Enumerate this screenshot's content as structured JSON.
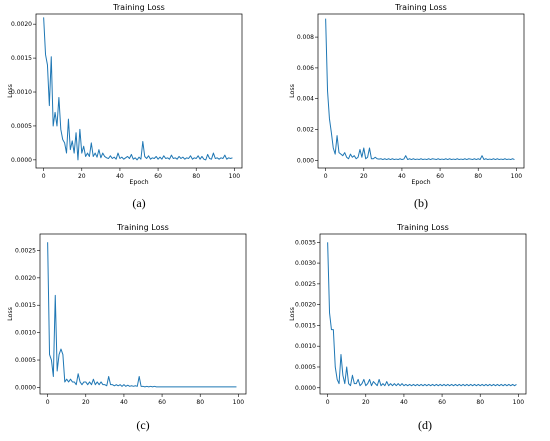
{
  "chart_data": [
    {
      "type": "line",
      "title": "Training Loss",
      "xlabel": "Epoch",
      "ylabel": "Loss",
      "caption": "(a)",
      "xlim": [
        -4,
        104
      ],
      "ylim": [
        -0.00012,
        0.00215
      ],
      "xticks": [
        0,
        20,
        40,
        60,
        80,
        100
      ],
      "xtick_labels": [
        "0",
        "20",
        "40",
        "60",
        "80",
        "100"
      ],
      "yticks": [
        0.0,
        0.0005,
        0.001,
        0.0015,
        0.002
      ],
      "ytick_labels": [
        "0.0000",
        "0.0005",
        "0.0010",
        "0.0015",
        "0.0020"
      ],
      "series": [
        {
          "color": "#1f77b4",
          "x": [
            0,
            1,
            2,
            3,
            4,
            5,
            6,
            7,
            8,
            9,
            10,
            11,
            12,
            13,
            14,
            15,
            16,
            17,
            18,
            19,
            20,
            21,
            22,
            23,
            24,
            25,
            26,
            27,
            28,
            29,
            30,
            31,
            32,
            33,
            34,
            35,
            36,
            37,
            38,
            39,
            40,
            41,
            42,
            43,
            44,
            45,
            46,
            47,
            48,
            49,
            50,
            51,
            52,
            53,
            54,
            55,
            56,
            57,
            58,
            59,
            60,
            61,
            62,
            63,
            64,
            65,
            66,
            67,
            68,
            69,
            70,
            71,
            72,
            73,
            74,
            75,
            76,
            77,
            78,
            79,
            80,
            81,
            82,
            83,
            84,
            85,
            86,
            87,
            88,
            89,
            90,
            91,
            92,
            93,
            94,
            95,
            96,
            97,
            98,
            99
          ],
          "values": [
            0.0021,
            0.00155,
            0.0014,
            0.0008,
            0.00152,
            0.0005,
            0.0007,
            0.0005,
            0.00092,
            0.00045,
            0.0003,
            0.00025,
            0.0001,
            0.0006,
            0.00015,
            0.00028,
            0.0001,
            0.0004,
            0.0,
            0.00045,
            0.0001,
            0.0002,
            5e-05,
            0.0001,
            5e-05,
            0.00025,
            5e-05,
            0.0001,
            4e-05,
            0.00015,
            3e-05,
            0.0001,
            5e-05,
            3e-05,
            2e-05,
            6e-05,
            2e-05,
            4e-05,
            1e-05,
            0.0001,
            2e-05,
            4e-05,
            1e-05,
            3e-05,
            5e-05,
            2e-05,
            8e-05,
            1e-05,
            3e-05,
            0.0,
            4e-05,
            1e-05,
            0.00027,
            5e-05,
            2e-05,
            6e-05,
            1e-05,
            3e-05,
            2e-05,
            5e-05,
            1e-05,
            4e-05,
            1e-05,
            6e-05,
            2e-05,
            3e-05,
            1e-05,
            7e-05,
            2e-05,
            3e-05,
            1e-05,
            5e-05,
            2e-05,
            4e-05,
            1e-05,
            3e-05,
            2e-05,
            6e-05,
            1e-05,
            3e-05,
            2e-05,
            6e-05,
            1e-05,
            5e-05,
            1e-05,
            0.0,
            8e-05,
            2e-05,
            1e-05,
            0.0001,
            2e-05,
            3e-05,
            1e-05,
            3e-05,
            2e-05,
            7e-05,
            1e-05,
            3e-05,
            2e-05,
            3e-05
          ]
        }
      ]
    },
    {
      "type": "line",
      "title": "Training Loss",
      "xlabel": "Epoch",
      "ylabel": "Loss",
      "caption": "(b)",
      "xlim": [
        -4,
        104
      ],
      "ylim": [
        -0.0005,
        0.0095
      ],
      "xticks": [
        0,
        20,
        40,
        60,
        80,
        100
      ],
      "xtick_labels": [
        "0",
        "20",
        "40",
        "60",
        "80",
        "100"
      ],
      "yticks": [
        0.0,
        0.002,
        0.004,
        0.006,
        0.008
      ],
      "ytick_labels": [
        "0.000",
        "0.002",
        "0.004",
        "0.006",
        "0.008"
      ],
      "series": [
        {
          "color": "#1f77b4",
          "x": [
            0,
            1,
            2,
            3,
            4,
            5,
            6,
            7,
            8,
            9,
            10,
            11,
            12,
            13,
            14,
            15,
            16,
            17,
            18,
            19,
            20,
            21,
            22,
            23,
            24,
            25,
            26,
            27,
            28,
            29,
            30,
            31,
            32,
            33,
            34,
            35,
            36,
            37,
            38,
            39,
            40,
            41,
            42,
            43,
            44,
            45,
            46,
            47,
            48,
            49,
            50,
            51,
            52,
            53,
            54,
            55,
            56,
            57,
            58,
            59,
            60,
            61,
            62,
            63,
            64,
            65,
            66,
            67,
            68,
            69,
            70,
            71,
            72,
            73,
            74,
            75,
            76,
            77,
            78,
            79,
            80,
            81,
            82,
            83,
            84,
            85,
            86,
            87,
            88,
            89,
            90,
            91,
            92,
            93,
            94,
            95,
            96,
            97,
            98,
            99
          ],
          "values": [
            0.0092,
            0.0045,
            0.0027,
            0.0018,
            0.0008,
            0.0004,
            0.0016,
            0.0005,
            0.0004,
            0.0003,
            0.0005,
            0.0002,
            0.0001,
            0.0004,
            0.0002,
            0.0003,
            0.0001,
            0.0002,
            0.0007,
            0.0002,
            0.0008,
            0.0001,
            0.0002,
            0.0008,
            0.0001,
            0.0001,
            0.0002,
            0.0001,
            8e-05,
            0.0001,
            5e-05,
            0.0001,
            5e-05,
            0.0001,
            5e-05,
            0.0001,
            5e-05,
            8e-05,
            5e-05,
            0.0001,
            5e-05,
            8e-05,
            0.0003,
            5e-05,
            0.0001,
            5e-05,
            0.0001,
            5e-05,
            8e-05,
            5e-05,
            0.0001,
            5e-05,
            8e-05,
            5e-05,
            0.0001,
            5e-05,
            0.0001,
            8e-05,
            5e-05,
            0.0001,
            5e-05,
            8e-05,
            5e-05,
            0.0001,
            5e-05,
            0.0001,
            5e-05,
            8e-05,
            5e-05,
            0.0001,
            5e-05,
            8e-05,
            5e-05,
            0.0001,
            5e-05,
            0.0001,
            8e-05,
            5e-05,
            0.0001,
            5e-05,
            0.0001,
            5e-05,
            0.0003,
            5e-05,
            0.0001,
            5e-05,
            8e-05,
            5e-05,
            0.0001,
            5e-05,
            0.0001,
            5e-05,
            8e-05,
            5e-05,
            0.0001,
            5e-05,
            8e-05,
            5e-05,
            0.0001,
            5e-05
          ]
        }
      ]
    },
    {
      "type": "line",
      "title": "Training Loss",
      "xlabel": "",
      "ylabel": "Loss",
      "caption": "(c)",
      "xlim": [
        -4,
        104
      ],
      "ylim": [
        -0.00012,
        0.0028
      ],
      "xticks": [
        0,
        20,
        40,
        60,
        80,
        100
      ],
      "xtick_labels": [
        "0",
        "20",
        "40",
        "60",
        "80",
        "100"
      ],
      "yticks": [
        0.0,
        0.0005,
        0.001,
        0.0015,
        0.002,
        0.0025
      ],
      "ytick_labels": [
        "0.0000",
        "0.0005",
        "0.0010",
        "0.0015",
        "0.0020",
        "0.0025"
      ],
      "series": [
        {
          "color": "#1f77b4",
          "x": [
            0,
            1,
            2,
            3,
            4,
            5,
            6,
            7,
            8,
            9,
            10,
            11,
            12,
            13,
            14,
            15,
            16,
            17,
            18,
            19,
            20,
            21,
            22,
            23,
            24,
            25,
            26,
            27,
            28,
            29,
            30,
            31,
            32,
            33,
            34,
            35,
            36,
            37,
            38,
            39,
            40,
            41,
            42,
            43,
            44,
            45,
            46,
            47,
            48,
            49,
            50,
            51,
            52,
            53,
            54,
            55,
            56,
            57,
            58,
            59,
            60,
            61,
            62,
            63,
            64,
            65,
            66,
            67,
            68,
            69,
            70,
            71,
            72,
            73,
            74,
            75,
            76,
            77,
            78,
            79,
            80,
            81,
            82,
            83,
            84,
            85,
            86,
            87,
            88,
            89,
            90,
            91,
            92,
            93,
            94,
            95,
            96,
            97,
            98,
            99
          ],
          "values": [
            0.00265,
            0.0006,
            0.0005,
            0.0002,
            0.00168,
            0.0003,
            0.0006,
            0.0007,
            0.0006,
            0.0001,
            0.00015,
            0.0001,
            0.00015,
            0.0001,
            0.0001,
            5e-05,
            0.00025,
            0.0001,
            5e-05,
            0.0001,
            0.0001,
            5e-05,
            0.0001,
            5e-05,
            0.00015,
            5e-05,
            0.0001,
            5e-05,
            0.0001,
            5e-05,
            5e-05,
            3e-05,
            0.0002,
            5e-05,
            5e-05,
            3e-05,
            5e-05,
            3e-05,
            5e-05,
            2e-05,
            5e-05,
            2e-05,
            4e-05,
            2e-05,
            3e-05,
            2e-05,
            3e-05,
            2e-05,
            0.0002,
            2e-05,
            2e-05,
            1e-05,
            2e-05,
            1e-05,
            2e-05,
            1e-05,
            2e-05,
            1e-05,
            1e-05,
            1e-05,
            1e-05,
            1e-05,
            1e-05,
            1e-05,
            1e-05,
            1e-05,
            1e-05,
            1e-05,
            1e-05,
            1e-05,
            1e-05,
            1e-05,
            1e-05,
            1e-05,
            1e-05,
            1e-05,
            1e-05,
            1e-05,
            1e-05,
            1e-05,
            1e-05,
            1e-05,
            1e-05,
            1e-05,
            1e-05,
            1e-05,
            1e-05,
            1e-05,
            1e-05,
            1e-05,
            1e-05,
            1e-05,
            1e-05,
            1e-05,
            1e-05,
            1e-05,
            1e-05,
            1e-05,
            1e-05,
            1e-05
          ]
        }
      ]
    },
    {
      "type": "line",
      "title": "Training Loss",
      "xlabel": "",
      "ylabel": "Loss",
      "caption": "(d)",
      "xlim": [
        -4,
        104
      ],
      "ylim": [
        -0.00015,
        0.0037
      ],
      "xticks": [
        0,
        20,
        40,
        60,
        80,
        100
      ],
      "xtick_labels": [
        "0",
        "20",
        "40",
        "60",
        "80",
        "100"
      ],
      "yticks": [
        0.0,
        0.0005,
        0.001,
        0.0015,
        0.002,
        0.0025,
        0.003,
        0.0035
      ],
      "ytick_labels": [
        "0.0000",
        "0.0005",
        "0.0010",
        "0.0015",
        "0.0020",
        "0.0025",
        "0.0030",
        "0.0035"
      ],
      "series": [
        {
          "color": "#1f77b4",
          "x": [
            0,
            1,
            2,
            3,
            4,
            5,
            6,
            7,
            8,
            9,
            10,
            11,
            12,
            13,
            14,
            15,
            16,
            17,
            18,
            19,
            20,
            21,
            22,
            23,
            24,
            25,
            26,
            27,
            28,
            29,
            30,
            31,
            32,
            33,
            34,
            35,
            36,
            37,
            38,
            39,
            40,
            41,
            42,
            43,
            44,
            45,
            46,
            47,
            48,
            49,
            50,
            51,
            52,
            53,
            54,
            55,
            56,
            57,
            58,
            59,
            60,
            61,
            62,
            63,
            64,
            65,
            66,
            67,
            68,
            69,
            70,
            71,
            72,
            73,
            74,
            75,
            76,
            77,
            78,
            79,
            80,
            81,
            82,
            83,
            84,
            85,
            86,
            87,
            88,
            89,
            90,
            91,
            92,
            93,
            94,
            95,
            96,
            97,
            98,
            99
          ],
          "values": [
            0.0035,
            0.0018,
            0.0014,
            0.0014,
            0.0005,
            0.0002,
            0.0001,
            0.0008,
            0.0003,
            0.0001,
            0.0005,
            0.0001,
            5e-05,
            0.0003,
            0.0001,
            0.0001,
            0.0002,
            5e-05,
            0.0001,
            0.0002,
            5e-05,
            0.0001,
            0.0002,
            5e-05,
            0.00015,
            0.0001,
            5e-05,
            0.0002,
            5e-05,
            0.0001,
            5e-05,
            0.00015,
            5e-05,
            0.0001,
            5e-05,
            0.0001,
            5e-05,
            0.0001,
            5e-05,
            0.0001,
            5e-05,
            8e-05,
            5e-05,
            8e-05,
            5e-05,
            8e-05,
            5e-05,
            8e-05,
            5e-05,
            8e-05,
            5e-05,
            8e-05,
            5e-05,
            8e-05,
            5e-05,
            8e-05,
            5e-05,
            8e-05,
            5e-05,
            8e-05,
            5e-05,
            8e-05,
            5e-05,
            8e-05,
            5e-05,
            8e-05,
            5e-05,
            8e-05,
            5e-05,
            8e-05,
            5e-05,
            8e-05,
            5e-05,
            8e-05,
            5e-05,
            8e-05,
            5e-05,
            8e-05,
            5e-05,
            8e-05,
            5e-05,
            8e-05,
            5e-05,
            8e-05,
            5e-05,
            8e-05,
            5e-05,
            8e-05,
            5e-05,
            8e-05,
            5e-05,
            8e-05,
            5e-05,
            8e-05,
            5e-05,
            8e-05,
            5e-05,
            8e-05,
            5e-05,
            8e-05
          ]
        }
      ]
    }
  ]
}
